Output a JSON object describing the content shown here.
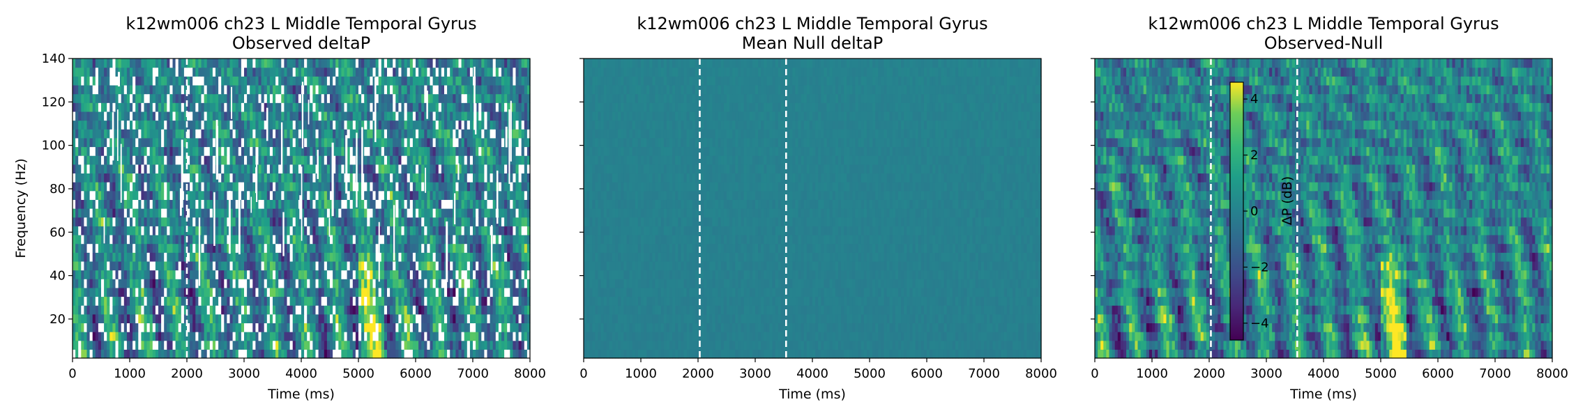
{
  "chart_data": [
    {
      "type": "heatmap",
      "title": "k12wm006 ch23 L Middle Temporal Gyrus",
      "subtitle": "Observed deltaP",
      "xlabel": "Time (ms)",
      "ylabel": "Frequency (Hz)",
      "xlim": [
        0,
        8000
      ],
      "ylim": [
        2,
        140
      ],
      "xticks": [
        0,
        1000,
        2000,
        3000,
        4000,
        5000,
        6000,
        7000,
        8000
      ],
      "yticks": [
        20,
        40,
        60,
        80,
        100,
        120,
        140
      ],
      "markers_ms": [
        2000
      ],
      "masked_nonsignificant": true,
      "colormap": "viridis"
    },
    {
      "type": "heatmap",
      "title": "k12wm006 ch23 L Middle Temporal Gyrus",
      "subtitle": "Mean Null deltaP",
      "xlabel": "Time (ms)",
      "ylabel": "",
      "xlim": [
        0,
        8000
      ],
      "ylim": [
        2,
        140
      ],
      "xticks": [
        0,
        1000,
        2000,
        3000,
        4000,
        5000,
        6000,
        7000,
        8000
      ],
      "yticks": [
        20,
        40,
        60,
        80,
        100,
        120,
        140
      ],
      "markers_ms": [
        2030,
        3540
      ],
      "colormap": "viridis"
    },
    {
      "type": "heatmap",
      "title": "k12wm006 ch23 L Middle Temporal Gyrus",
      "subtitle": "Observed-Null",
      "xlabel": "Time (ms)",
      "ylabel": "",
      "xlim": [
        0,
        8000
      ],
      "ylim": [
        2,
        140
      ],
      "xticks": [
        0,
        1000,
        2000,
        3000,
        4000,
        5000,
        6000,
        7000,
        8000
      ],
      "yticks": [
        20,
        40,
        60,
        80,
        100,
        120,
        140
      ],
      "markers_ms": [
        2030,
        3540
      ],
      "colormap": "viridis",
      "colorbar": {
        "label": "ΔP (dB)",
        "range": [
          -4.6,
          4.6
        ],
        "ticks": [
          -4,
          -2,
          0,
          2,
          4
        ],
        "tick_labels": [
          "−4",
          "−2",
          "0",
          "2",
          "4"
        ]
      }
    }
  ]
}
